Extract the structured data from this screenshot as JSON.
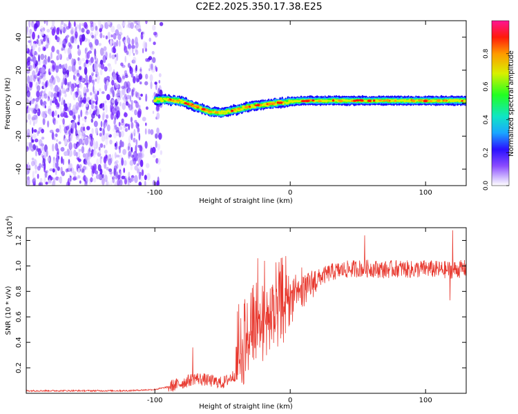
{
  "title": "C2E2.2025.350.17.38.E25",
  "chart_data": [
    {
      "type": "heatmap",
      "name": "spectrogram",
      "xlabel": "Height of straight line (km)",
      "ylabel": "Frequency (Hz)",
      "xlim": [
        -195,
        130
      ],
      "ylim": [
        -50,
        50
      ],
      "xticks": [
        -100,
        0,
        100
      ],
      "xtick_labels": [
        "-100",
        "0",
        "100"
      ],
      "yticks": [
        -40,
        -20,
        0,
        20,
        40
      ],
      "ytick_labels": [
        "-40",
        "-20",
        "0",
        "20",
        "40"
      ],
      "colorbar": {
        "label": "Normalized spectral amplitude",
        "range": [
          0,
          1
        ],
        "ticks": [
          0.0,
          0.2,
          0.4,
          0.6,
          0.8
        ],
        "tick_labels": [
          "0.0",
          "0.2",
          "0.4",
          "0.6",
          "0.8"
        ]
      },
      "noise_region_x": [
        -195,
        -100
      ],
      "ridge": {
        "x": [
          -100,
          -90,
          -80,
          -70,
          -60,
          -50,
          -40,
          -30,
          -20,
          -10,
          0,
          10,
          20,
          40,
          60,
          80,
          100,
          115,
          130
        ],
        "freq": [
          2,
          2,
          1,
          -2,
          -5,
          -6,
          -4,
          -2,
          -1,
          0,
          1,
          1.5,
          1.5,
          1.5,
          1.5,
          1.5,
          1.5,
          1.5,
          1.5
        ]
      }
    },
    {
      "type": "line",
      "name": "snr",
      "xlabel": "Height of straight line (km)",
      "ylabel": "SNR (10 * v/v)",
      "scale_label": "(x10",
      "scale_exponent": "4",
      "xlim": [
        -195,
        130
      ],
      "ylim": [
        0,
        1.3
      ],
      "xticks": [
        -100,
        0,
        100
      ],
      "xtick_labels": [
        "-100",
        "0",
        "100"
      ],
      "yticks": [
        0.2,
        0.4,
        0.6,
        0.8,
        1.0,
        1.2
      ],
      "ytick_labels": [
        "0.2",
        "0.4",
        "0.6",
        "0.8",
        "1.0",
        "1.2"
      ],
      "color": "#e8392f",
      "series": [
        {
          "name": "SNR",
          "envelope_x": [
            -195,
            -120,
            -100,
            -90,
            -80,
            -70,
            -60,
            -50,
            -40,
            -35,
            -30,
            -20,
            -10,
            0,
            10,
            20,
            30,
            40,
            50,
            60,
            70,
            80,
            90,
            100,
            110,
            120,
            130
          ],
          "envelope_y": [
            0.02,
            0.02,
            0.03,
            0.05,
            0.08,
            0.12,
            0.1,
            0.08,
            0.15,
            0.25,
            0.35,
            0.45,
            0.55,
            0.65,
            0.8,
            0.9,
            0.95,
            0.97,
            0.98,
            0.98,
            0.97,
            0.98,
            0.97,
            0.98,
            0.97,
            0.97,
            0.98
          ],
          "spikes": [
            {
              "x": -72,
              "y": 0.36
            },
            {
              "x": -38,
              "y": 0.7
            },
            {
              "x": -24,
              "y": 1.06
            },
            {
              "x": -19,
              "y": 1.04
            },
            {
              "x": -10,
              "y": 0.82
            },
            {
              "x": 55,
              "y": 1.24
            },
            {
              "x": 120,
              "y": 1.28
            },
            {
              "x": 118,
              "y": 0.73
            }
          ]
        }
      ]
    }
  ]
}
